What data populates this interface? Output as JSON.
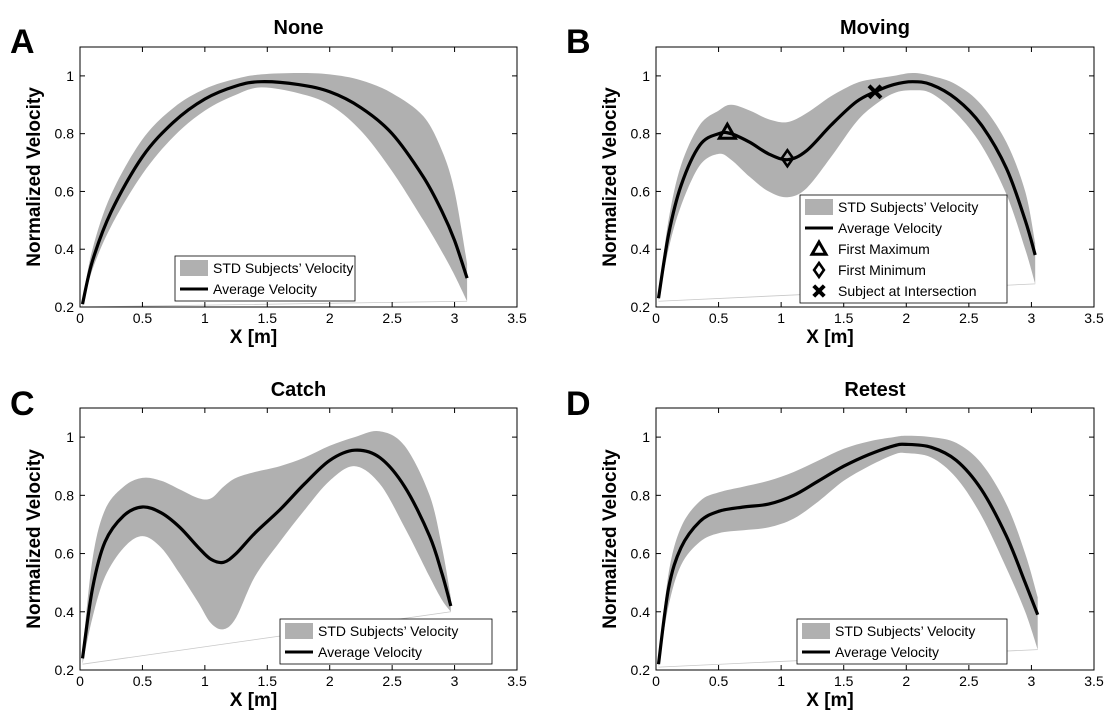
{
  "chart_data": [
    {
      "type": "area",
      "panel_letter": "A",
      "title": "None",
      "xlabel": "X [m]",
      "ylabel": "Normalized Velocity",
      "xlim": [
        0,
        3.5
      ],
      "ylim": [
        0.2,
        1.1
      ],
      "xticks": [
        0,
        0.5,
        1,
        1.5,
        2,
        2.5,
        3,
        3.5
      ],
      "yticks": [
        0.2,
        0.4,
        0.6,
        0.8,
        1
      ],
      "tick_labels_x": [
        "0",
        "0.5",
        "1",
        "1.5",
        "2",
        "2.5",
        "3",
        "3.5"
      ],
      "tick_labels_y": [
        "0.2",
        "0.4",
        "0.6",
        "0.8",
        "1"
      ],
      "grid": false,
      "legend_position": "lower-center",
      "legend": [
        {
          "label": "STD Subjects’ Velocity",
          "symbol": "band"
        },
        {
          "label": "Average Velocity",
          "symbol": "line"
        }
      ],
      "series": [
        {
          "name": "Average Velocity",
          "x": [
            0.02,
            0.1,
            0.25,
            0.5,
            0.75,
            1.0,
            1.25,
            1.45,
            1.75,
            2.0,
            2.25,
            2.5,
            2.75,
            2.9,
            3.0,
            3.1
          ],
          "y": [
            0.21,
            0.36,
            0.53,
            0.72,
            0.84,
            0.92,
            0.965,
            0.98,
            0.97,
            0.945,
            0.89,
            0.8,
            0.65,
            0.53,
            0.43,
            0.3
          ]
        }
      ],
      "band": {
        "name": "STD Subjects’ Velocity",
        "x": [
          0.02,
          0.1,
          0.25,
          0.5,
          0.75,
          1.0,
          1.25,
          1.45,
          1.75,
          2.0,
          2.25,
          2.5,
          2.75,
          2.9,
          3.0,
          3.1
        ],
        "upper": [
          0.22,
          0.4,
          0.59,
          0.78,
          0.89,
          0.955,
          0.99,
          1.005,
          1.01,
          1.005,
          0.985,
          0.94,
          0.86,
          0.74,
          0.6,
          0.35
        ],
        "lower": [
          0.2,
          0.33,
          0.48,
          0.66,
          0.79,
          0.88,
          0.935,
          0.96,
          0.94,
          0.9,
          0.81,
          0.67,
          0.5,
          0.39,
          0.31,
          0.22
        ]
      },
      "markers": []
    },
    {
      "type": "area",
      "panel_letter": "B",
      "title": "Moving",
      "xlabel": "X [m]",
      "ylabel": "Normalized Velocity",
      "xlim": [
        0,
        3.5
      ],
      "ylim": [
        0.2,
        1.1
      ],
      "xticks": [
        0,
        0.5,
        1,
        1.5,
        2,
        2.5,
        3,
        3.5
      ],
      "yticks": [
        0.2,
        0.4,
        0.6,
        0.8,
        1
      ],
      "tick_labels_x": [
        "0",
        "0.5",
        "1",
        "1.5",
        "2",
        "2.5",
        "3",
        "3.5"
      ],
      "tick_labels_y": [
        "0.2",
        "0.4",
        "0.6",
        "0.8",
        "1"
      ],
      "grid": false,
      "legend_position": "lower-right",
      "legend": [
        {
          "label": "STD Subjects’ Velocity",
          "symbol": "band"
        },
        {
          "label": "Average Velocity",
          "symbol": "line"
        },
        {
          "label": "First Maximum",
          "symbol": "triangle"
        },
        {
          "label": "First Minimum",
          "symbol": "diamond"
        },
        {
          "label": "Subject at Intersection",
          "symbol": "x"
        }
      ],
      "series": [
        {
          "name": "Average Velocity",
          "x": [
            0.02,
            0.1,
            0.2,
            0.35,
            0.5,
            0.6,
            0.75,
            0.9,
            1.05,
            1.2,
            1.4,
            1.6,
            1.75,
            1.9,
            2.05,
            2.2,
            2.4,
            2.6,
            2.8,
            2.95,
            3.03
          ],
          "y": [
            0.23,
            0.45,
            0.62,
            0.76,
            0.8,
            0.8,
            0.77,
            0.73,
            0.71,
            0.74,
            0.83,
            0.91,
            0.945,
            0.97,
            0.98,
            0.97,
            0.92,
            0.83,
            0.68,
            0.5,
            0.38
          ]
        }
      ],
      "band": {
        "name": "STD Subjects’ Velocity",
        "x": [
          0.02,
          0.1,
          0.2,
          0.35,
          0.5,
          0.6,
          0.75,
          0.9,
          1.05,
          1.2,
          1.4,
          1.6,
          1.75,
          1.9,
          2.05,
          2.2,
          2.4,
          2.6,
          2.8,
          2.95,
          3.03
        ],
        "upper": [
          0.24,
          0.5,
          0.69,
          0.83,
          0.88,
          0.9,
          0.88,
          0.85,
          0.84,
          0.87,
          0.93,
          0.975,
          0.99,
          1.0,
          1.01,
          1.0,
          0.97,
          0.9,
          0.77,
          0.6,
          0.42
        ],
        "lower": [
          0.22,
          0.4,
          0.55,
          0.69,
          0.73,
          0.71,
          0.65,
          0.6,
          0.58,
          0.61,
          0.72,
          0.84,
          0.9,
          0.94,
          0.95,
          0.94,
          0.87,
          0.76,
          0.59,
          0.4,
          0.28
        ]
      },
      "markers": [
        {
          "label": "First Maximum",
          "symbol": "triangle",
          "x": 0.57,
          "y": 0.805
        },
        {
          "label": "First Minimum",
          "symbol": "diamond",
          "x": 1.05,
          "y": 0.715
        },
        {
          "label": "Subject at Intersection",
          "symbol": "x",
          "x": 1.75,
          "y": 0.945
        }
      ]
    },
    {
      "type": "area",
      "panel_letter": "C",
      "title": "Catch",
      "xlabel": "X [m]",
      "ylabel": "Normalized Velocity",
      "xlim": [
        0,
        3.5
      ],
      "ylim": [
        0.2,
        1.1
      ],
      "xticks": [
        0,
        0.5,
        1,
        1.5,
        2,
        2.5,
        3,
        3.5
      ],
      "yticks": [
        0.2,
        0.4,
        0.6,
        0.8,
        1
      ],
      "tick_labels_x": [
        "0",
        "0.5",
        "1",
        "1.5",
        "2",
        "2.5",
        "3",
        "3.5"
      ],
      "tick_labels_y": [
        "0.2",
        "0.4",
        "0.6",
        "0.8",
        "1"
      ],
      "grid": false,
      "legend_position": "lower-right",
      "legend": [
        {
          "label": "STD Subjects’ Velocity",
          "symbol": "band"
        },
        {
          "label": "Average Velocity",
          "symbol": "line"
        }
      ],
      "series": [
        {
          "name": "Average Velocity",
          "x": [
            0.02,
            0.1,
            0.2,
            0.35,
            0.5,
            0.65,
            0.8,
            0.95,
            1.05,
            1.15,
            1.25,
            1.4,
            1.6,
            1.8,
            2.0,
            2.2,
            2.4,
            2.6,
            2.8,
            2.9,
            2.97
          ],
          "y": [
            0.24,
            0.48,
            0.64,
            0.73,
            0.76,
            0.74,
            0.69,
            0.62,
            0.58,
            0.57,
            0.6,
            0.67,
            0.75,
            0.84,
            0.92,
            0.955,
            0.93,
            0.83,
            0.66,
            0.53,
            0.42
          ]
        }
      ],
      "band": {
        "name": "STD Subjects’ Velocity",
        "x": [
          0.02,
          0.1,
          0.2,
          0.35,
          0.5,
          0.65,
          0.8,
          0.95,
          1.05,
          1.15,
          1.25,
          1.4,
          1.6,
          1.8,
          2.0,
          2.2,
          2.4,
          2.6,
          2.8,
          2.9,
          2.97
        ],
        "upper": [
          0.26,
          0.58,
          0.75,
          0.83,
          0.86,
          0.85,
          0.82,
          0.79,
          0.79,
          0.83,
          0.86,
          0.88,
          0.9,
          0.93,
          0.97,
          1.0,
          1.02,
          0.97,
          0.8,
          0.62,
          0.45
        ],
        "lower": [
          0.22,
          0.38,
          0.52,
          0.62,
          0.66,
          0.62,
          0.53,
          0.43,
          0.36,
          0.34,
          0.38,
          0.52,
          0.64,
          0.75,
          0.85,
          0.9,
          0.84,
          0.69,
          0.52,
          0.44,
          0.4
        ]
      },
      "markers": []
    },
    {
      "type": "area",
      "panel_letter": "D",
      "title": "Retest",
      "xlabel": "X [m]",
      "ylabel": "Normalized Velocity",
      "xlim": [
        0,
        3.5
      ],
      "ylim": [
        0.2,
        1.1
      ],
      "xticks": [
        0,
        0.5,
        1,
        1.5,
        2,
        2.5,
        3,
        3.5
      ],
      "yticks": [
        0.2,
        0.4,
        0.6,
        0.8,
        1
      ],
      "tick_labels_x": [
        "0",
        "0.5",
        "1",
        "1.5",
        "2",
        "2.5",
        "3",
        "3.5"
      ],
      "tick_labels_y": [
        "0.2",
        "0.4",
        "0.6",
        "0.8",
        "1"
      ],
      "grid": false,
      "legend_position": "lower-right",
      "legend": [
        {
          "label": "STD Subjects’ Velocity",
          "symbol": "band"
        },
        {
          "label": "Average Velocity",
          "symbol": "line"
        }
      ],
      "series": [
        {
          "name": "Average Velocity",
          "x": [
            0.02,
            0.1,
            0.2,
            0.35,
            0.5,
            0.7,
            0.9,
            1.1,
            1.3,
            1.5,
            1.7,
            1.9,
            2.0,
            2.2,
            2.4,
            2.6,
            2.8,
            2.95,
            3.05
          ],
          "y": [
            0.22,
            0.48,
            0.62,
            0.71,
            0.745,
            0.76,
            0.77,
            0.8,
            0.85,
            0.9,
            0.94,
            0.97,
            0.975,
            0.965,
            0.92,
            0.82,
            0.66,
            0.5,
            0.39
          ]
        }
      ],
      "band": {
        "name": "STD Subjects’ Velocity",
        "x": [
          0.02,
          0.1,
          0.2,
          0.35,
          0.5,
          0.7,
          0.9,
          1.1,
          1.3,
          1.5,
          1.7,
          1.9,
          2.0,
          2.2,
          2.4,
          2.6,
          2.8,
          2.95,
          3.05
        ],
        "upper": [
          0.23,
          0.53,
          0.69,
          0.78,
          0.81,
          0.83,
          0.85,
          0.88,
          0.92,
          0.96,
          0.985,
          1.0,
          1.005,
          1.0,
          0.98,
          0.91,
          0.77,
          0.6,
          0.45
        ],
        "lower": [
          0.21,
          0.42,
          0.56,
          0.64,
          0.67,
          0.68,
          0.69,
          0.72,
          0.78,
          0.85,
          0.9,
          0.94,
          0.945,
          0.93,
          0.86,
          0.73,
          0.55,
          0.4,
          0.27
        ]
      },
      "markers": []
    }
  ]
}
